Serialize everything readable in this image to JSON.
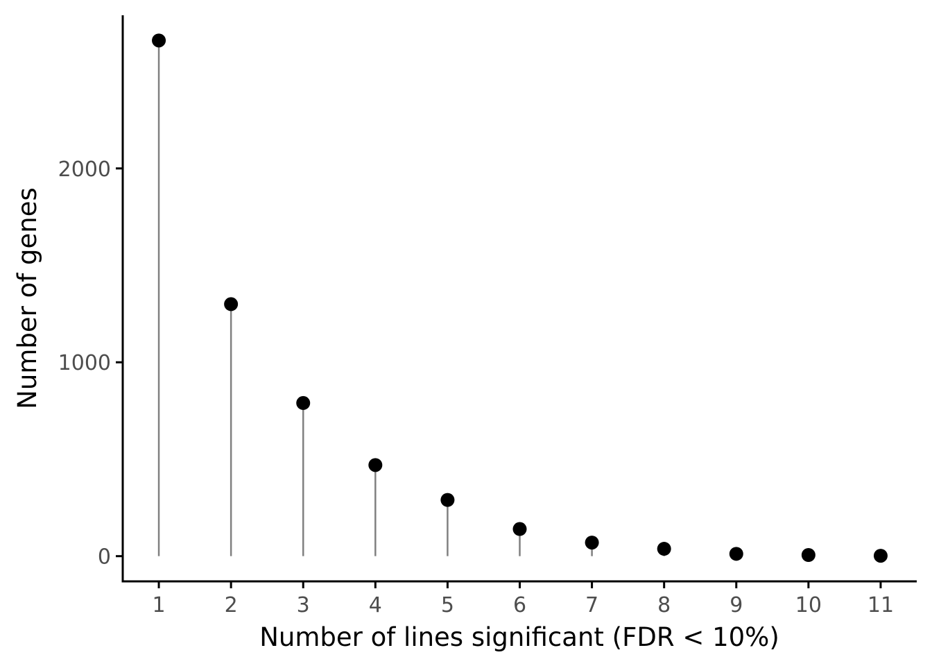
{
  "chart_data": {
    "type": "scatter",
    "style": "lollipop",
    "xlabel": "Number of lines significant (FDR < 10%)",
    "ylabel": "Number of genes",
    "x": [
      1,
      2,
      3,
      4,
      5,
      6,
      7,
      8,
      9,
      10,
      11
    ],
    "y": [
      2660,
      1300,
      790,
      470,
      290,
      140,
      70,
      38,
      12,
      6,
      2
    ],
    "xticks": [
      "1",
      "2",
      "3",
      "4",
      "5",
      "6",
      "7",
      "8",
      "9",
      "10",
      "11"
    ],
    "yticks": [
      "0",
      "1000",
      "2000"
    ],
    "xlim": [
      0.5,
      11.5
    ],
    "ylim": [
      -130,
      2790
    ],
    "grid": false,
    "colors": {
      "point": "#000000",
      "stem": "#808080",
      "axis": "#000000",
      "tick_label": "#4d4d4d"
    }
  }
}
